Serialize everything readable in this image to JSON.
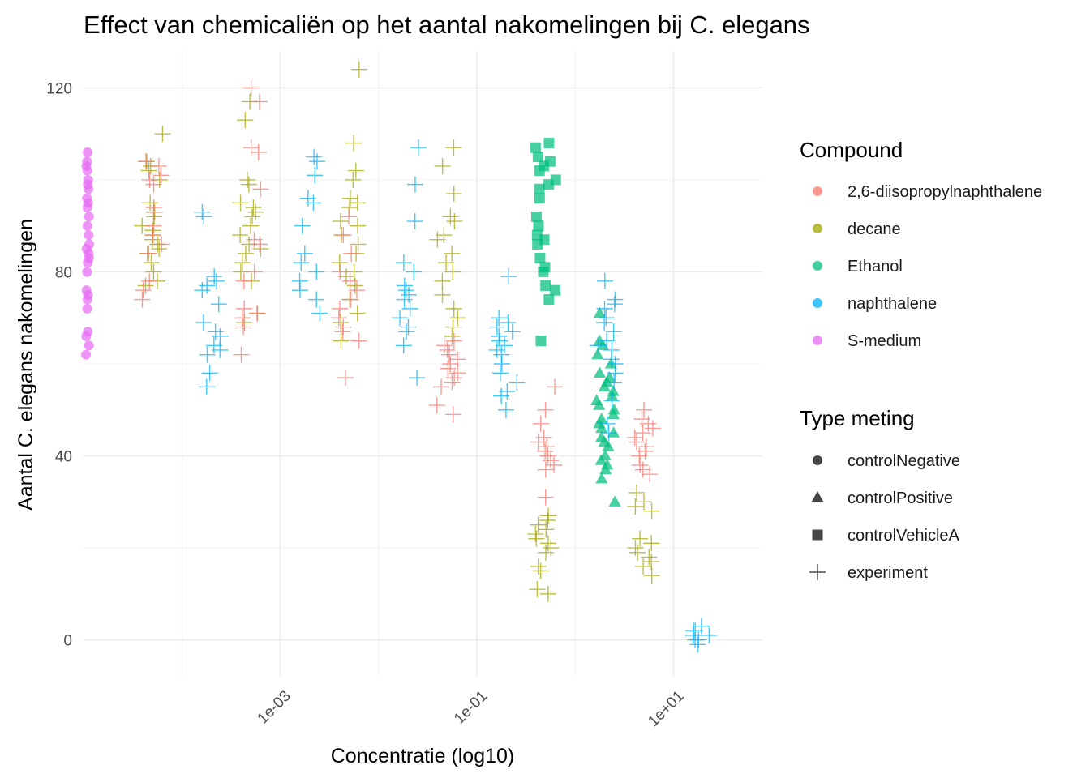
{
  "chart_data": {
    "type": "scatter",
    "title": "Effect van chemicaliën op het aantal nakomelingen bij C. elegans",
    "xlabel": "Concentratie (log10)",
    "ylabel": "Aantal C. elegans nakomelingen",
    "x_scale": "log10",
    "xlim": [
      1e-05,
      80
    ],
    "ylim": [
      -8,
      128
    ],
    "x_ticks": [
      {
        "value": 0.001,
        "label": "1e-03"
      },
      {
        "value": 0.1,
        "label": "1e-01"
      },
      {
        "value": 10,
        "label": "1e+01"
      }
    ],
    "x_minor_ticks": [
      0.0001,
      0.01,
      1
    ],
    "y_ticks": [
      {
        "value": 0,
        "label": "0"
      },
      {
        "value": 40,
        "label": "40"
      },
      {
        "value": 80,
        "label": "80"
      },
      {
        "value": 120,
        "label": "120"
      }
    ],
    "y_minor_ticks": [
      20,
      60,
      100
    ],
    "grid": true,
    "legend_position": "right",
    "legends": {
      "color": {
        "title": "Compound",
        "entries": [
          {
            "name": "2,6-diisopropylnaphthalene",
            "color": "#F8766D"
          },
          {
            "name": "decane",
            "color": "#A3A500"
          },
          {
            "name": "Ethanol",
            "color": "#00BF7D"
          },
          {
            "name": "naphthalene",
            "color": "#00B0F6"
          },
          {
            "name": "S-medium",
            "color": "#E76BF3"
          }
        ]
      },
      "shape": {
        "title": "Type meting",
        "entries": [
          {
            "name": "controlNegative",
            "shape": "circle"
          },
          {
            "name": "controlPositive",
            "shape": "triangle"
          },
          {
            "name": "controlVehicleA",
            "shape": "square"
          },
          {
            "name": "experiment",
            "shape": "plus"
          }
        ]
      }
    },
    "groups": [
      {
        "compound": "S-medium",
        "type": "controlNegative",
        "x": 1.1e-05,
        "y": [
          62,
          64,
          66,
          67,
          72,
          74,
          75,
          76,
          80,
          82,
          83,
          84,
          85,
          86,
          88,
          90,
          92,
          94,
          95,
          96,
          98,
          99,
          100,
          102,
          103,
          104,
          106
        ]
      },
      {
        "compound": "decane",
        "type": "experiment",
        "x": 5e-05,
        "y": [
          77,
          78,
          80,
          82,
          84,
          85,
          86,
          87,
          88,
          89,
          90,
          92,
          93,
          95,
          100,
          102,
          103,
          104,
          110
        ]
      },
      {
        "compound": "2,6-diisopropylnaphthalene",
        "type": "experiment",
        "x": 5e-05,
        "y": [
          74,
          76,
          78,
          84,
          86,
          88,
          90,
          93,
          94,
          99,
          100,
          101,
          103,
          104
        ]
      },
      {
        "compound": "naphthalene",
        "type": "experiment",
        "x": 0.0002,
        "y": [
          55,
          58,
          62,
          63,
          64,
          66,
          67,
          69,
          73,
          76,
          77,
          78,
          79,
          92,
          93
        ]
      },
      {
        "compound": "decane",
        "type": "experiment",
        "x": 0.0005,
        "y": [
          69,
          71,
          78,
          80,
          82,
          84,
          85,
          86,
          88,
          90,
          92,
          93,
          94,
          95,
          99,
          100,
          113,
          117
        ]
      },
      {
        "compound": "2,6-diisopropylnaphthalene",
        "type": "experiment",
        "x": 0.0005,
        "y": [
          62,
          68,
          70,
          71,
          72,
          78,
          80,
          86,
          87,
          98,
          106,
          107,
          117,
          120
        ]
      },
      {
        "compound": "naphthalene",
        "type": "experiment",
        "x": 0.002,
        "y": [
          71,
          74,
          76,
          78,
          80,
          82,
          84,
          90,
          95,
          96,
          101,
          104,
          105
        ]
      },
      {
        "compound": "decane",
        "type": "experiment",
        "x": 0.005,
        "y": [
          65,
          69,
          71,
          74,
          77,
          79,
          80,
          82,
          84,
          86,
          88,
          90,
          91,
          94,
          95,
          96,
          100,
          102,
          108,
          124
        ]
      },
      {
        "compound": "2,6-diisopropylnaphthalene",
        "type": "experiment",
        "x": 0.005,
        "y": [
          57,
          65,
          67,
          68,
          70,
          72,
          74,
          76,
          78,
          80,
          84,
          88,
          92
        ]
      },
      {
        "compound": "naphthalene",
        "type": "experiment",
        "x": 0.02,
        "y": [
          57,
          64,
          67,
          68,
          70,
          72,
          74,
          75,
          76,
          77,
          80,
          82,
          91,
          99,
          107
        ]
      },
      {
        "compound": "decane",
        "type": "experiment",
        "x": 0.05,
        "y": [
          66,
          68,
          70,
          72,
          75,
          78,
          80,
          82,
          84,
          87,
          88,
          91,
          92,
          97,
          103,
          107
        ]
      },
      {
        "compound": "2,6-diisopropylnaphthalene",
        "type": "experiment",
        "x": 0.05,
        "y": [
          49,
          51,
          55,
          56,
          57,
          58,
          59,
          60,
          61,
          62,
          63,
          64,
          65
        ]
      },
      {
        "compound": "naphthalene",
        "type": "experiment",
        "x": 0.2,
        "y": [
          50,
          53,
          54,
          56,
          58,
          60,
          62,
          63,
          64,
          65,
          66,
          67,
          68,
          69,
          70,
          79
        ]
      },
      {
        "compound": "Ethanol",
        "type": "controlVehicleA",
        "x": 0.5,
        "y": [
          65,
          74,
          76,
          77,
          80,
          81,
          83,
          86,
          87,
          88,
          90,
          92,
          96,
          98,
          99,
          100,
          102,
          103,
          104,
          105,
          107,
          108
        ]
      },
      {
        "compound": "2,6-diisopropylnaphthalene",
        "type": "experiment",
        "x": 0.5,
        "y": [
          31,
          37,
          38,
          39,
          40,
          41,
          42,
          43,
          44,
          47,
          50,
          55
        ]
      },
      {
        "compound": "decane",
        "type": "experiment",
        "x": 0.5,
        "y": [
          10,
          11,
          15,
          16,
          19,
          20,
          21,
          22,
          23,
          24,
          25,
          26,
          27
        ]
      },
      {
        "compound": "Ethanol",
        "type": "controlPositive",
        "x": 2,
        "y": [
          30,
          35,
          37,
          38,
          39,
          40,
          42,
          43,
          44,
          45,
          46,
          47,
          48,
          49,
          50,
          51,
          52,
          53,
          54,
          55,
          56,
          57,
          58,
          60,
          62,
          64,
          65,
          71
        ]
      },
      {
        "compound": "naphthalene",
        "type": "experiment",
        "x": 2,
        "y": [
          45,
          47,
          52,
          56,
          58,
          60,
          61,
          63,
          64,
          65,
          67,
          69,
          70,
          72,
          73,
          74,
          78
        ]
      },
      {
        "compound": "2,6-diisopropylnaphthalene",
        "type": "experiment",
        "x": 5,
        "y": [
          36,
          37,
          38,
          40,
          41,
          42,
          43,
          44,
          45,
          46,
          47,
          48,
          50
        ]
      },
      {
        "compound": "decane",
        "type": "experiment",
        "x": 5,
        "y": [
          14,
          16,
          17,
          18,
          19,
          20,
          21,
          22,
          28,
          29,
          30,
          32
        ]
      },
      {
        "compound": "naphthalene",
        "type": "experiment",
        "x": 20,
        "y": [
          -1,
          0,
          0,
          1,
          1,
          2,
          2,
          3
        ]
      }
    ]
  }
}
